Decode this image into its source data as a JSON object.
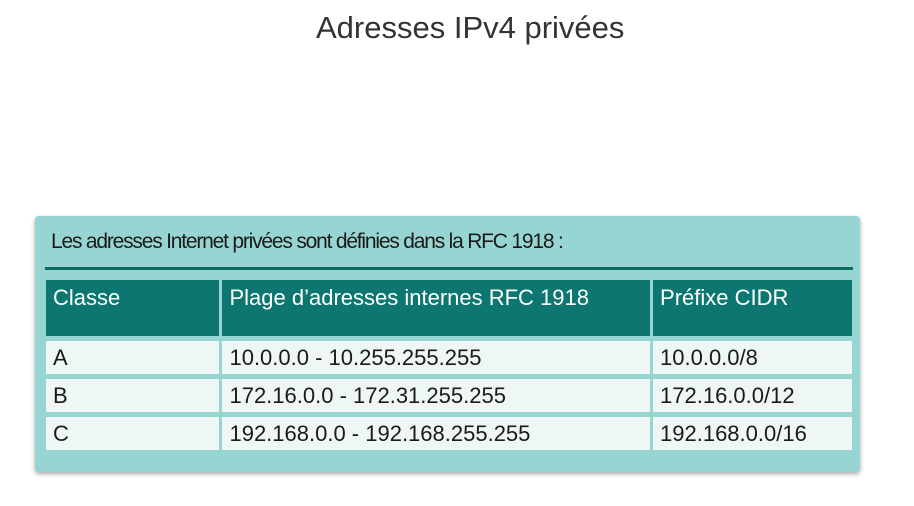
{
  "page": {
    "title": "Adresses IPv4 privées"
  },
  "panel": {
    "caption": "Les adresses Internet privées sont définies dans la RFC 1918 :",
    "table": {
      "headers": [
        "Classe",
        "Plage d’adresses internes RFC 1918",
        "Préfixe CIDR"
      ],
      "rows": [
        [
          "A",
          "10.0.0.0 - 10.255.255.255",
          "10.0.0.0/8"
        ],
        [
          "B",
          "172.16.0.0 - 172.31.255.255",
          "172.16.0.0/12"
        ],
        [
          "C",
          "192.168.0.0 - 192.168.255.255",
          "192.168.0.0/16"
        ]
      ]
    }
  },
  "colors": {
    "panel_background": "#97d5d2",
    "header_background": "#0e7670",
    "cell_background": "#eef6f6",
    "rule": "#0f6b66"
  }
}
